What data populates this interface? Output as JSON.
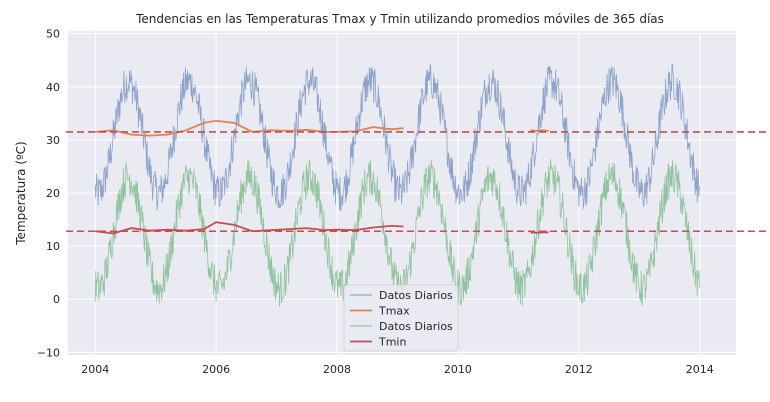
{
  "chart_data": {
    "type": "line",
    "title": "Tendencias en las Temperaturas Tmax y Tmin utilizando promedios móviles de 365 días",
    "xlabel": "",
    "ylabel": "Temperatura (ºC)",
    "xlim": [
      2003.55,
      2014.6
    ],
    "ylim": [
      -10.5,
      50.5
    ],
    "x_ticks": [
      2004,
      2006,
      2008,
      2010,
      2012,
      2014
    ],
    "x_tick_labels": [
      "2004",
      "2006",
      "2008",
      "2010",
      "2012",
      "2014"
    ],
    "y_ticks": [
      -10,
      0,
      10,
      20,
      30,
      40,
      50
    ],
    "y_tick_labels": [
      "−10",
      "0",
      "10",
      "20",
      "30",
      "40",
      "50"
    ],
    "grid": true,
    "legend_position": "bottom-center",
    "series": [
      {
        "name": "Datos Diarios",
        "kind": "daily",
        "color": "#4c72b0",
        "x_range": [
          2004.0,
          2014.0
        ],
        "mean": 30.5,
        "amplitude": 10.5,
        "peak_phase": 0.55,
        "noise": 3.5
      },
      {
        "name": "Tmax",
        "kind": "rolling",
        "color": "#dd8452",
        "x": [
          2004.0,
          2004.3,
          2004.6,
          2004.9,
          2005.2,
          2005.5,
          2005.8,
          2006.0,
          2006.3,
          2006.6,
          2006.9,
          2007.2,
          2007.5,
          2007.8,
          2008.0,
          2008.3,
          2008.6,
          2008.9,
          2009.1
        ],
        "y": [
          31.5,
          31.8,
          31.0,
          30.8,
          31.0,
          31.8,
          33.2,
          33.6,
          33.2,
          31.5,
          31.8,
          31.7,
          31.9,
          31.5,
          31.5,
          31.6,
          32.4,
          32.0,
          32.2
        ],
        "x2": [
          2011.2,
          2011.3,
          2011.4,
          2011.5
        ],
        "y2": [
          31.8,
          31.7,
          31.8,
          31.7
        ]
      },
      {
        "name": "Datos Diarios",
        "kind": "daily",
        "color": "#55a868",
        "x_range": [
          2004.0,
          2014.0
        ],
        "mean": 12.5,
        "amplitude": 10.5,
        "peak_phase": 0.55,
        "noise": 3.5
      },
      {
        "name": "Tmin",
        "kind": "rolling",
        "color": "#c44e52",
        "x": [
          2004.0,
          2004.3,
          2004.6,
          2004.9,
          2005.2,
          2005.5,
          2005.8,
          2006.0,
          2006.3,
          2006.6,
          2006.9,
          2007.2,
          2007.5,
          2007.8,
          2008.0,
          2008.3,
          2008.6,
          2008.9,
          2009.1
        ],
        "y": [
          12.8,
          12.4,
          13.4,
          12.9,
          13.1,
          12.9,
          13.2,
          14.5,
          14.0,
          12.8,
          13.0,
          13.2,
          13.4,
          13.0,
          13.1,
          13.0,
          13.5,
          13.8,
          13.7
        ],
        "x2": [
          2011.2,
          2011.3,
          2011.4,
          2011.5
        ],
        "y2": [
          12.6,
          12.5,
          12.6,
          12.6
        ]
      }
    ],
    "reference_lines": [
      {
        "y": 31.5,
        "color": "#c44e52",
        "style": "dashed"
      },
      {
        "y": 12.8,
        "color": "#c44e52",
        "style": "dashed"
      }
    ],
    "legend": [
      "Datos Diarios",
      "Tmax",
      "Datos Diarios",
      "Tmin"
    ]
  }
}
